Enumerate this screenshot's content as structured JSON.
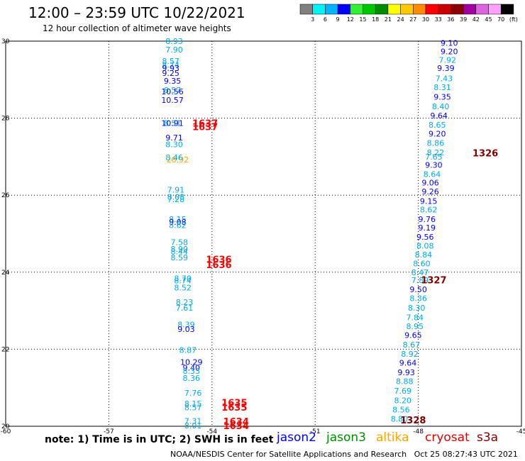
{
  "header": {
    "title": "12:00 – 23:59 UTC 10/22/2021",
    "subtitle": "12 hour collection of altimeter wave heights"
  },
  "colorbar": {
    "ticks": [
      "3",
      "6",
      "9",
      "12",
      "15",
      "18",
      "21",
      "24",
      "27",
      "30",
      "33",
      "36",
      "39",
      "42",
      "45",
      "70",
      "(ft)"
    ],
    "colors": [
      "#808080",
      "#00f5f5",
      "#00b4ff",
      "#0000ff",
      "#32f032",
      "#00c800",
      "#008c00",
      "#ffff00",
      "#ffc800",
      "#ff8c00",
      "#ff0000",
      "#c80000",
      "#8c0000",
      "#a000a0",
      "#dc64dc",
      "#ffa0ff",
      "#000000"
    ]
  },
  "footer": {
    "note": "note:  1) Time is in UTC;  2) SWH is in feet",
    "credit": "NOAA/NESDIS Center for Satellite Applications and Research",
    "timestamp": "Oct 25 08:27:43 UTC 2021"
  },
  "legend": [
    {
      "name": "jason2",
      "color": "#0000ff"
    },
    {
      "name": "jason3",
      "color": "#008c00"
    },
    {
      "name": "altika",
      "color": "#ffa500"
    },
    {
      "name": "cryosat",
      "color": "#e00000"
    },
    {
      "name": "s3a",
      "color": "#800000"
    }
  ],
  "chart_data": {
    "type": "scatter",
    "xlim": [
      -60,
      -45
    ],
    "ylim": [
      20,
      30
    ],
    "xticks": [
      "-60",
      "-57",
      "-54",
      "-51",
      "-48",
      "-45"
    ],
    "yticks": [
      "30",
      "28",
      "26",
      "24",
      "22",
      "20"
    ],
    "grid": true,
    "tracks": [
      {
        "color": "#00aaee",
        "points": [
          {
            "x": -55.1,
            "y": 30.0,
            "v": "8.93"
          },
          {
            "x": -55.1,
            "y": 29.78,
            "v": "7.90"
          },
          {
            "x": -55.2,
            "y": 29.48,
            "v": "8.57"
          },
          {
            "x": -55.2,
            "y": 29.38,
            "v": "8.74"
          },
          {
            "x": -55.2,
            "y": 29.17,
            "v": "9.25",
            "c": "#0000ff"
          },
          {
            "x": -55.2,
            "y": 29.3,
            "v": "9.93",
            "c": "#0000ff"
          },
          {
            "x": -55.15,
            "y": 28.97,
            "v": "9.35",
            "c": "#0000ff"
          },
          {
            "x": -55.15,
            "y": 28.73,
            "v": "8.57"
          },
          {
            "x": -55.15,
            "y": 28.69,
            "v": "10.56",
            "c": "#0000ff"
          },
          {
            "x": -55.15,
            "y": 28.47,
            "v": "10.57",
            "c": "#0000ff"
          },
          {
            "x": -55.15,
            "y": 27.87,
            "v": "8.51"
          },
          {
            "x": -55.15,
            "y": 27.87,
            "v": "10.91",
            "c": "#0000ff"
          },
          {
            "x": -55.1,
            "y": 27.5,
            "v": "9.71",
            "c": "#0000ff"
          },
          {
            "x": -55.1,
            "y": 27.32,
            "v": "8.30"
          },
          {
            "x": -55.1,
            "y": 26.98,
            "v": "8.46"
          },
          {
            "x": -55.05,
            "y": 26.14,
            "v": "7.91"
          },
          {
            "x": -55.05,
            "y": 25.96,
            "v": "8.08"
          },
          {
            "x": -55.05,
            "y": 25.89,
            "v": "7.28"
          },
          {
            "x": -55.0,
            "y": 25.38,
            "v": "8.15"
          },
          {
            "x": -55.0,
            "y": 25.3,
            "v": "9.08",
            "c": "#0000ff"
          },
          {
            "x": -55.0,
            "y": 25.22,
            "v": "8.62"
          },
          {
            "x": -54.95,
            "y": 24.78,
            "v": "7.58"
          },
          {
            "x": -54.95,
            "y": 24.6,
            "v": "8.90"
          },
          {
            "x": -54.95,
            "y": 24.54,
            "v": "8.44"
          },
          {
            "x": -54.95,
            "y": 24.38,
            "v": "8.59"
          },
          {
            "x": -54.85,
            "y": 23.84,
            "v": "8.70"
          },
          {
            "x": -54.85,
            "y": 23.78,
            "v": "8.74"
          },
          {
            "x": -54.85,
            "y": 23.6,
            "v": "8.52"
          },
          {
            "x": -54.8,
            "y": 23.22,
            "v": "8.23"
          },
          {
            "x": -54.8,
            "y": 23.08,
            "v": "7.61"
          },
          {
            "x": -54.75,
            "y": 22.64,
            "v": "8.39"
          },
          {
            "x": -54.75,
            "y": 22.52,
            "v": "9.03",
            "c": "#0000ff"
          },
          {
            "x": -54.7,
            "y": 21.98,
            "v": "8.87"
          },
          {
            "x": -54.6,
            "y": 21.67,
            "v": "10.29",
            "c": "#0000ff"
          },
          {
            "x": -54.6,
            "y": 21.52,
            "v": "9.40",
            "c": "#0000ff"
          },
          {
            "x": -54.6,
            "y": 21.44,
            "v": "8.33"
          },
          {
            "x": -54.6,
            "y": 21.25,
            "v": "8.36"
          },
          {
            "x": -54.55,
            "y": 20.87,
            "v": "7.76"
          },
          {
            "x": -54.55,
            "y": 20.59,
            "v": "8.15"
          },
          {
            "x": -54.55,
            "y": 20.49,
            "v": "8.57"
          },
          {
            "x": -54.55,
            "y": 20.14,
            "v": "7.31"
          },
          {
            "x": -54.55,
            "y": 20.02,
            "v": "8.01"
          }
        ]
      },
      {
        "color": "#00aaee",
        "points": [
          {
            "x": -47.1,
            "y": 29.95,
            "v": "9.10",
            "c": "#0000ff"
          },
          {
            "x": -47.1,
            "y": 29.73,
            "v": "9.20",
            "c": "#0000ff"
          },
          {
            "x": -47.15,
            "y": 29.51,
            "v": "7.92"
          },
          {
            "x": -47.2,
            "y": 29.3,
            "v": "9.39",
            "c": "#0000ff"
          },
          {
            "x": -47.25,
            "y": 29.03,
            "v": "7.43"
          },
          {
            "x": -47.3,
            "y": 28.8,
            "v": "8.31"
          },
          {
            "x": -47.3,
            "y": 28.55,
            "v": "9.35",
            "c": "#0000ff"
          },
          {
            "x": -47.35,
            "y": 28.31,
            "v": "8.40"
          },
          {
            "x": -47.4,
            "y": 28.07,
            "v": "9.64",
            "c": "#0000ff"
          },
          {
            "x": -47.45,
            "y": 27.83,
            "v": "8.65"
          },
          {
            "x": -47.45,
            "y": 27.6,
            "v": "9.20",
            "c": "#0000ff"
          },
          {
            "x": -47.5,
            "y": 27.36,
            "v": "8.86"
          },
          {
            "x": -47.5,
            "y": 27.11,
            "v": "8.22"
          },
          {
            "x": -47.55,
            "y": 27.0,
            "v": "7.65"
          },
          {
            "x": -47.55,
            "y": 26.79,
            "v": "9.30",
            "c": "#0000ff"
          },
          {
            "x": -47.6,
            "y": 26.55,
            "v": "8.64"
          },
          {
            "x": -47.65,
            "y": 26.33,
            "v": "9.06",
            "c": "#0000ff"
          },
          {
            "x": -47.65,
            "y": 26.1,
            "v": "9.26",
            "c": "#0000ff"
          },
          {
            "x": -47.7,
            "y": 25.85,
            "v": "9.15",
            "c": "#0000ff"
          },
          {
            "x": -47.7,
            "y": 25.63,
            "v": "8.62"
          },
          {
            "x": -47.75,
            "y": 25.38,
            "v": "9.76",
            "c": "#0000ff"
          },
          {
            "x": -47.75,
            "y": 25.16,
            "v": "9.19",
            "c": "#0000ff"
          },
          {
            "x": -47.8,
            "y": 24.92,
            "v": "9.56",
            "c": "#0000ff"
          },
          {
            "x": -47.8,
            "y": 24.69,
            "v": "8.08"
          },
          {
            "x": -47.85,
            "y": 24.46,
            "v": "8.84"
          },
          {
            "x": -47.9,
            "y": 24.23,
            "v": "8.60"
          },
          {
            "x": -47.95,
            "y": 24.0,
            "v": "8.47"
          },
          {
            "x": -47.95,
            "y": 23.79,
            "v": "7.89"
          },
          {
            "x": -48.0,
            "y": 23.55,
            "v": "9.50",
            "c": "#0000ff"
          },
          {
            "x": -48.0,
            "y": 23.32,
            "v": "8.36"
          },
          {
            "x": -48.05,
            "y": 23.08,
            "v": "8.30"
          },
          {
            "x": -48.1,
            "y": 22.83,
            "v": "7.84"
          },
          {
            "x": -48.1,
            "y": 22.6,
            "v": "8.95"
          },
          {
            "x": -48.15,
            "y": 22.37,
            "v": "9.65",
            "c": "#0000ff"
          },
          {
            "x": -48.2,
            "y": 22.12,
            "v": "8.67"
          },
          {
            "x": -48.25,
            "y": 21.88,
            "v": "8.92"
          },
          {
            "x": -48.3,
            "y": 21.65,
            "v": "9.64",
            "c": "#0000ff"
          },
          {
            "x": -48.35,
            "y": 21.4,
            "v": "9.93",
            "c": "#0000ff"
          },
          {
            "x": -48.4,
            "y": 21.17,
            "v": "8.88"
          },
          {
            "x": -48.45,
            "y": 20.92,
            "v": "7.69"
          },
          {
            "x": -48.45,
            "y": 20.67,
            "v": "8.20"
          },
          {
            "x": -48.5,
            "y": 20.43,
            "v": "8.56"
          },
          {
            "x": -48.55,
            "y": 20.19,
            "v": "8.80"
          }
        ]
      },
      {
        "color": "#ffa500",
        "points": [
          {
            "x": -55.0,
            "y": 26.92,
            "v": "28.92"
          }
        ]
      }
    ],
    "time_labels": [
      {
        "x": -54.2,
        "y": 27.87,
        "v": "1637",
        "color": "#ff0000"
      },
      {
        "x": -54.2,
        "y": 27.78,
        "v": "1637",
        "color": "#ff0000"
      },
      {
        "x": -53.8,
        "y": 24.34,
        "v": "1636",
        "color": "#ff0000"
      },
      {
        "x": -53.8,
        "y": 24.2,
        "v": "1636",
        "color": "#ff0000"
      },
      {
        "x": -53.35,
        "y": 20.62,
        "v": "1635",
        "color": "#ff0000"
      },
      {
        "x": -53.35,
        "y": 20.5,
        "v": "1635",
        "color": "#ff0000"
      },
      {
        "x": -53.3,
        "y": 20.13,
        "v": "1634",
        "color": "#ff0000"
      },
      {
        "x": -53.3,
        "y": 20.02,
        "v": "1634",
        "color": "#ff0000"
      },
      {
        "x": -46.05,
        "y": 27.1,
        "v": "1326",
        "color": "#800000"
      },
      {
        "x": -47.55,
        "y": 23.8,
        "v": "1327",
        "color": "#800000"
      },
      {
        "x": -48.15,
        "y": 20.17,
        "v": "1328",
        "color": "#800000"
      }
    ]
  }
}
